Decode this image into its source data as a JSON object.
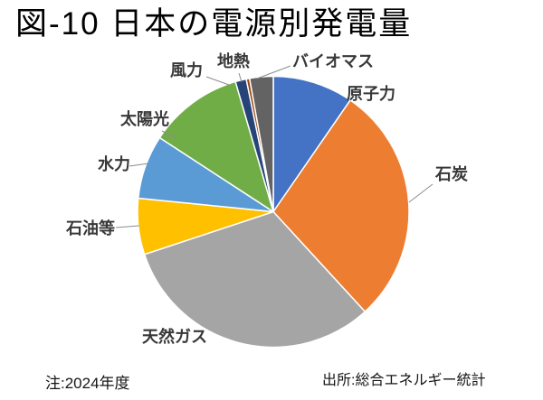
{
  "title": "図-10 日本の電源別発電量",
  "note": "注:2024年度",
  "source": "出所:総合エネルギー統計",
  "chart_data": {
    "type": "pie",
    "title": "図-10 日本の電源別発電量",
    "unit": "share of total generation, %",
    "start_angle_deg": 0,
    "direction": "clockwise",
    "legend_position": "none",
    "data_labels": "category names outside slices, some with leader lines",
    "categories": [
      "原子力",
      "石炭",
      "天然ガス",
      "石油等",
      "水力",
      "太陽光",
      "風力",
      "地熱",
      "バイオマス"
    ],
    "values": [
      9.6,
      28.6,
      31.7,
      6.7,
      7.6,
      11.3,
      1.3,
      0.4,
      2.8
    ],
    "colors": [
      "#4472C4",
      "#ED7D31",
      "#A5A5A5",
      "#FFC000",
      "#5B9BD5",
      "#70AD47",
      "#264478",
      "#9E480E",
      "#636363"
    ],
    "slice_border_color": "#FFFFFF",
    "leader_line_color": "#8C8C8C",
    "note": "注:2024年度",
    "source": "出所:総合エネルギー統計"
  }
}
